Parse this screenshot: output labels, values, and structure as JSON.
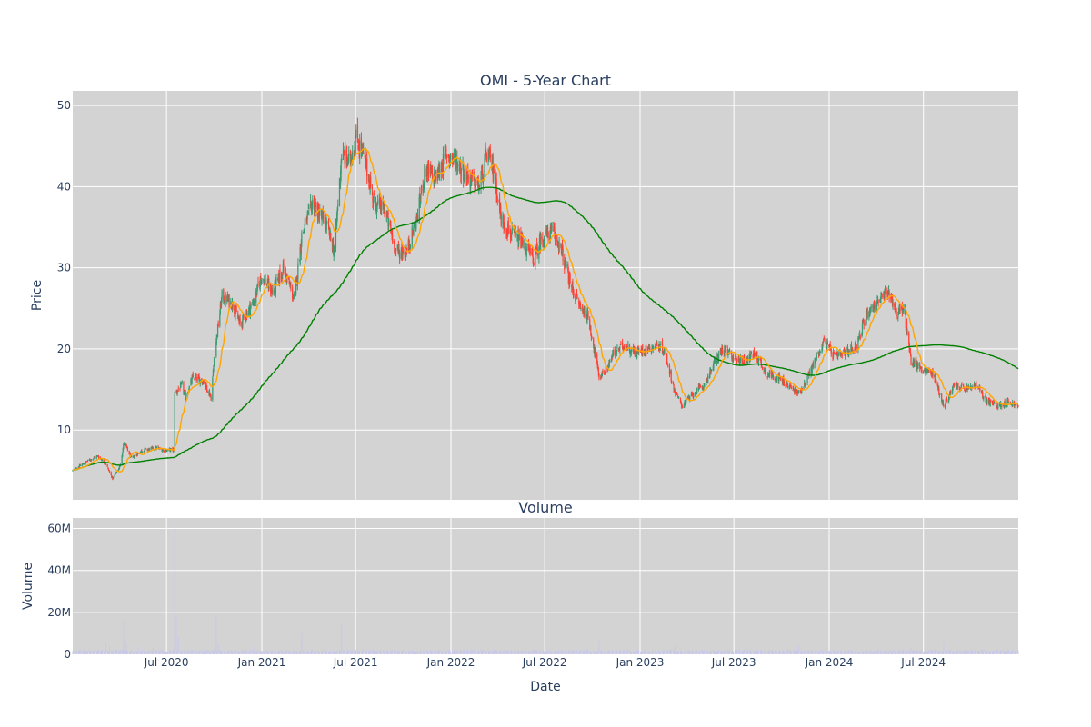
{
  "chart_data": [
    {
      "type": "candlestick",
      "title": "OMI - 5-Year Chart",
      "xlabel": "",
      "ylabel": "Price",
      "ylim": [
        1.4,
        51.8
      ],
      "xlim": [
        "2020-01-02",
        "2024-12-31"
      ],
      "grid": true,
      "x_ticks": [
        "Jul 2020",
        "Jan 2021",
        "Jul 2021",
        "Jan 2022",
        "Jul 2022",
        "Jan 2023",
        "Jul 2023",
        "Jan 2024",
        "Jul 2024"
      ],
      "y_ticks": [
        10,
        20,
        30,
        40,
        50
      ],
      "colors": {
        "up": "#3d9970",
        "down": "#ff4136",
        "short_ma": "#ffa500",
        "long_ma": "#008000",
        "background": "#d3d3d3"
      },
      "close_anchors": [
        [
          "2020-01-02",
          5.0
        ],
        [
          "2020-01-31",
          6.2
        ],
        [
          "2020-02-20",
          6.8
        ],
        [
          "2020-03-06",
          5.8
        ],
        [
          "2020-03-19",
          4.0
        ],
        [
          "2020-04-02",
          5.5
        ],
        [
          "2020-04-10",
          8.5
        ],
        [
          "2020-04-24",
          6.5
        ],
        [
          "2020-05-15",
          7.5
        ],
        [
          "2020-06-12",
          7.8
        ],
        [
          "2020-06-26",
          7.5
        ],
        [
          "2020-07-16",
          7.6
        ],
        [
          "2020-07-17",
          14.5
        ],
        [
          "2020-07-31",
          15.5
        ],
        [
          "2020-08-07",
          14.0
        ],
        [
          "2020-08-21",
          16.5
        ],
        [
          "2020-09-11",
          16.0
        ],
        [
          "2020-09-25",
          14.0
        ],
        [
          "2020-10-02",
          19.5
        ],
        [
          "2020-10-16",
          26.5
        ],
        [
          "2020-11-06",
          25.5
        ],
        [
          "2020-11-20",
          23.0
        ],
        [
          "2020-12-18",
          26.0
        ],
        [
          "2020-12-31",
          29.0
        ],
        [
          "2021-01-22",
          27.0
        ],
        [
          "2021-02-12",
          30.0
        ],
        [
          "2021-03-05",
          26.0
        ],
        [
          "2021-03-19",
          34.0
        ],
        [
          "2021-04-09",
          38.0
        ],
        [
          "2021-05-07",
          35.0
        ],
        [
          "2021-05-21",
          32.0
        ],
        [
          "2021-06-04",
          44.0
        ],
        [
          "2021-06-18",
          43.0
        ],
        [
          "2021-07-02",
          46.0
        ],
        [
          "2021-07-16",
          44.0
        ],
        [
          "2021-08-06",
          38.0
        ],
        [
          "2021-08-27",
          37.0
        ],
        [
          "2021-09-17",
          32.0
        ],
        [
          "2021-10-08",
          32.0
        ],
        [
          "2021-10-29",
          36.5
        ],
        [
          "2021-11-12",
          42.0
        ],
        [
          "2021-12-03",
          41.0
        ],
        [
          "2021-12-24",
          44.0
        ],
        [
          "2022-01-14",
          43.0
        ],
        [
          "2022-02-04",
          41.0
        ],
        [
          "2022-02-25",
          40.0
        ],
        [
          "2022-03-11",
          44.0
        ],
        [
          "2022-03-25",
          42.0
        ],
        [
          "2022-04-08",
          36.0
        ],
        [
          "2022-04-29",
          34.0
        ],
        [
          "2022-05-20",
          33.0
        ],
        [
          "2022-06-10",
          31.0
        ],
        [
          "2022-06-24",
          33.5
        ],
        [
          "2022-07-15",
          34.5
        ],
        [
          "2022-07-29",
          33.0
        ],
        [
          "2022-08-19",
          28.0
        ],
        [
          "2022-09-09",
          25.0
        ],
        [
          "2022-09-23",
          24.0
        ],
        [
          "2022-10-14",
          16.5
        ],
        [
          "2022-10-28",
          17.5
        ],
        [
          "2022-11-11",
          19.5
        ],
        [
          "2022-12-02",
          20.5
        ],
        [
          "2022-12-23",
          19.5
        ],
        [
          "2023-01-13",
          20.0
        ],
        [
          "2023-02-03",
          20.5
        ],
        [
          "2023-02-17",
          19.8
        ],
        [
          "2023-03-10",
          14.5
        ],
        [
          "2023-03-24",
          13.0
        ],
        [
          "2023-04-14",
          14.5
        ],
        [
          "2023-05-05",
          15.5
        ],
        [
          "2023-05-26",
          18.5
        ],
        [
          "2023-06-09",
          20.0
        ],
        [
          "2023-06-30",
          19.0
        ],
        [
          "2023-07-21",
          18.5
        ],
        [
          "2023-08-11",
          19.5
        ],
        [
          "2023-09-01",
          17.0
        ],
        [
          "2023-09-22",
          16.5
        ],
        [
          "2023-10-13",
          15.5
        ],
        [
          "2023-11-03",
          14.5
        ],
        [
          "2023-11-17",
          16.0
        ],
        [
          "2023-12-08",
          19.0
        ],
        [
          "2023-12-22",
          21.0
        ],
        [
          "2024-01-12",
          19.0
        ],
        [
          "2024-02-02",
          19.5
        ],
        [
          "2024-02-23",
          20.5
        ],
        [
          "2024-03-15",
          24.5
        ],
        [
          "2024-04-05",
          26.0
        ],
        [
          "2024-04-26",
          27.0
        ],
        [
          "2024-05-10",
          24.5
        ],
        [
          "2024-05-24",
          25.0
        ],
        [
          "2024-06-07",
          18.5
        ],
        [
          "2024-06-28",
          17.5
        ],
        [
          "2024-07-19",
          17.0
        ],
        [
          "2024-08-09",
          13.0
        ],
        [
          "2024-08-30",
          15.5
        ],
        [
          "2024-09-20",
          15.0
        ],
        [
          "2024-10-11",
          15.5
        ],
        [
          "2024-11-01",
          13.5
        ],
        [
          "2024-11-22",
          13.0
        ],
        [
          "2024-12-13",
          13.5
        ],
        [
          "2024-12-31",
          12.8
        ]
      ],
      "series": [
        {
          "style": "candles",
          "source": "close_anchors"
        },
        {
          "style": "line",
          "source": "short_ma"
        },
        {
          "style": "line",
          "source": "long_ma"
        }
      ]
    },
    {
      "type": "bar",
      "title": "Volume",
      "xlabel": "Date",
      "ylabel": "Volume",
      "ylim": [
        0,
        65000000
      ],
      "x_ticks": [
        "Jul 2020",
        "Jan 2021",
        "Jul 2021",
        "Jan 2022",
        "Jul 2022",
        "Jan 2023",
        "Jul 2023",
        "Jan 2024",
        "Jul 2024"
      ],
      "y_ticks": [
        {
          "value": 0,
          "label": "0"
        },
        {
          "value": 20000000,
          "label": "20M"
        },
        {
          "value": 40000000,
          "label": "40M"
        },
        {
          "value": 60000000,
          "label": "60M"
        }
      ],
      "colors": {
        "bar": "#c8c8e8"
      },
      "base_volume": 1500000,
      "spikes": [
        [
          "2020-02-14",
          3000000
        ],
        [
          "2020-03-06",
          5000000
        ],
        [
          "2020-03-13",
          4000000
        ],
        [
          "2020-04-09",
          16000000
        ],
        [
          "2020-04-14",
          6000000
        ],
        [
          "2020-05-08",
          3500000
        ],
        [
          "2020-06-05",
          3000000
        ],
        [
          "2020-07-17",
          62000000
        ],
        [
          "2020-07-20",
          18000000
        ],
        [
          "2020-07-24",
          8000000
        ],
        [
          "2020-10-05",
          18000000
        ],
        [
          "2020-10-09",
          5000000
        ],
        [
          "2020-12-18",
          4000000
        ],
        [
          "2021-03-19",
          10000000
        ],
        [
          "2021-06-04",
          14000000
        ],
        [
          "2022-10-14",
          6500000
        ],
        [
          "2023-03-10",
          4500000
        ],
        [
          "2023-11-03",
          4000000
        ],
        [
          "2024-06-07",
          3500000
        ],
        [
          "2024-08-09",
          6000000
        ]
      ]
    }
  ]
}
